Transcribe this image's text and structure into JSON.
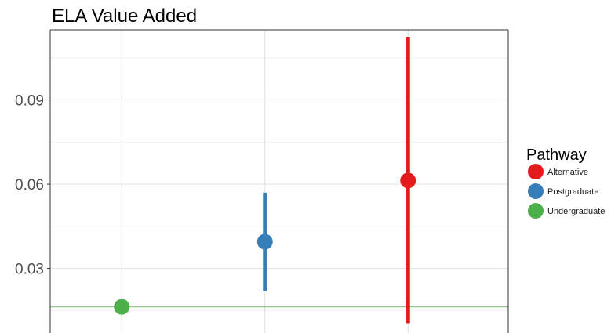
{
  "chart_data": {
    "type": "scatter",
    "title": "ELA Value Added",
    "xlabel": "",
    "ylabel": "",
    "ylim": [
      0.007,
      0.115
    ],
    "y_ticks": [
      0.03,
      0.06,
      0.09
    ],
    "y_tick_labels": [
      "0.03",
      "0.06",
      "0.09"
    ],
    "x_categories": 3,
    "grid": true,
    "reference_line": {
      "y": 0.0163,
      "color": "#4DAF4A"
    },
    "legend": {
      "title": "Pathway",
      "position": "right",
      "entries": [
        {
          "label": "Alternative",
          "color": "#E41A1C"
        },
        {
          "label": "Postgraduate",
          "color": "#377EB8"
        },
        {
          "label": "Undergraduate",
          "color": "#4DAF4A"
        }
      ]
    },
    "series": [
      {
        "name": "Undergraduate",
        "color": "#4DAF4A",
        "x": 1,
        "y": 0.0163,
        "ymin": null,
        "ymax": null
      },
      {
        "name": "Postgraduate",
        "color": "#377EB8",
        "x": 2,
        "y": 0.0395,
        "ymin": 0.022,
        "ymax": 0.057
      },
      {
        "name": "Alternative",
        "color": "#E41A1C",
        "x": 3,
        "y": 0.0613,
        "ymin": 0.0105,
        "ymax": 0.1125
      }
    ]
  }
}
